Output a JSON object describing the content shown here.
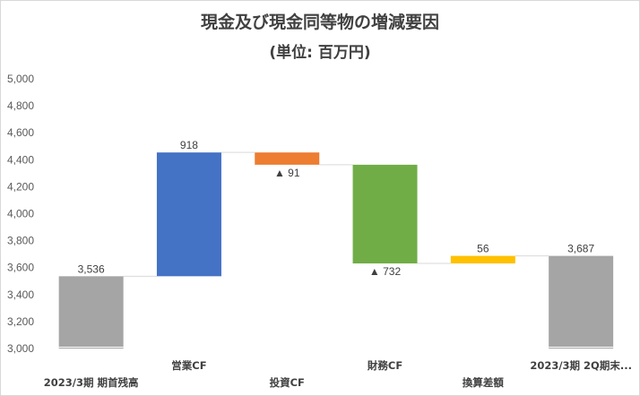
{
  "chart_data": {
    "type": "waterfall",
    "title": "現金及び現金同等物の増減要因",
    "subtitle": "(単位: 百万円)",
    "ylim": [
      3000,
      5000
    ],
    "yticks": [
      3000,
      3200,
      3400,
      3600,
      3800,
      4000,
      4200,
      4400,
      4600,
      4800,
      5000
    ],
    "ytick_labels": [
      "3,000",
      "3,200",
      "3,400",
      "3,600",
      "3,800",
      "4,000",
      "4,200",
      "4,400",
      "4,600",
      "4,800",
      "5,000"
    ],
    "grid": false,
    "categories": [
      "2023/3期 期首残高",
      "営業CF",
      "投資CF",
      "財務CF",
      "換算差額",
      "2023/3期 2Q期末..."
    ],
    "bars": [
      {
        "category": "2023/3期 期首残高",
        "kind": "total",
        "start": 3000,
        "end": 3536,
        "label": "3,536",
        "color": "#a5a5a5"
      },
      {
        "category": "営業CF",
        "kind": "increase",
        "start": 3536,
        "end": 4454,
        "label": "918",
        "color": "#4472c4"
      },
      {
        "category": "投資CF",
        "kind": "decrease",
        "start": 4454,
        "end": 4363,
        "label": "▲ 91",
        "color": "#ed7d31"
      },
      {
        "category": "財務CF",
        "kind": "decrease",
        "start": 4363,
        "end": 3631,
        "label": "▲ 732",
        "color": "#70ad47"
      },
      {
        "category": "換算差額",
        "kind": "increase",
        "start": 3631,
        "end": 3687,
        "label": "56",
        "color": "#ffc000"
      },
      {
        "category": "2023/3期 2Q期末...",
        "kind": "total",
        "start": 3000,
        "end": 3687,
        "label": "3,687",
        "color": "#a5a5a5"
      }
    ]
  }
}
